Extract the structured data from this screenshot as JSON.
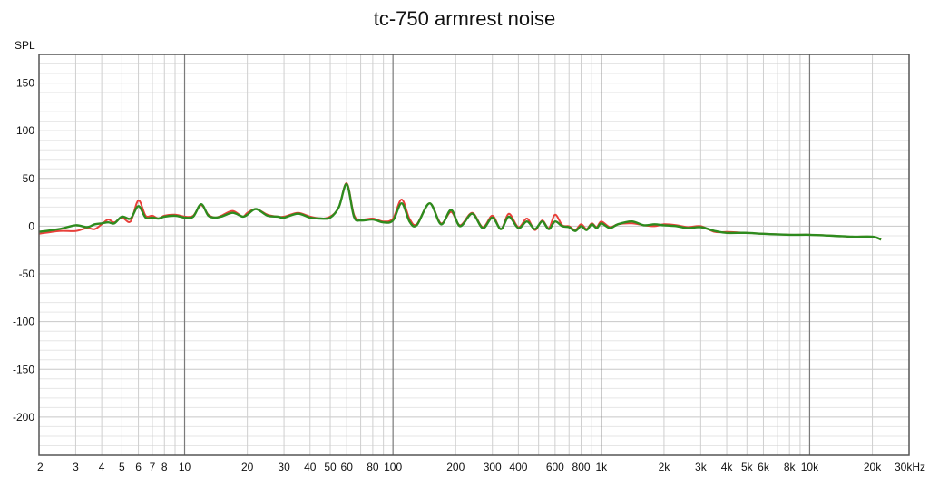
{
  "chart_data": {
    "type": "line",
    "title": "tc-750 armrest noise",
    "ylabel": "SPL",
    "xlabel": "",
    "x_scale": "log",
    "xlim": [
      2,
      30000
    ],
    "ylim": [
      -240,
      180
    ],
    "grid": true,
    "y_ticks": [
      150,
      100,
      50,
      0,
      -50,
      -100,
      -150,
      -200
    ],
    "x_ticks": [
      {
        "value": 2,
        "label": "2"
      },
      {
        "value": 3,
        "label": "3"
      },
      {
        "value": 4,
        "label": "4"
      },
      {
        "value": 5,
        "label": "5"
      },
      {
        "value": 6,
        "label": "6"
      },
      {
        "value": 7,
        "label": "7"
      },
      {
        "value": 8,
        "label": "8"
      },
      {
        "value": 10,
        "label": "10"
      },
      {
        "value": 20,
        "label": "20"
      },
      {
        "value": 30,
        "label": "30"
      },
      {
        "value": 40,
        "label": "40"
      },
      {
        "value": 50,
        "label": "50"
      },
      {
        "value": 60,
        "label": "60"
      },
      {
        "value": 80,
        "label": "80"
      },
      {
        "value": 100,
        "label": "100"
      },
      {
        "value": 200,
        "label": "200"
      },
      {
        "value": 300,
        "label": "300"
      },
      {
        "value": 400,
        "label": "400"
      },
      {
        "value": 600,
        "label": "600"
      },
      {
        "value": 800,
        "label": "800"
      },
      {
        "value": 1000,
        "label": "1k"
      },
      {
        "value": 2000,
        "label": "2k"
      },
      {
        "value": 3000,
        "label": "3k"
      },
      {
        "value": 4000,
        "label": "4k"
      },
      {
        "value": 5000,
        "label": "5k"
      },
      {
        "value": 6000,
        "label": "6k"
      },
      {
        "value": 8000,
        "label": "8k"
      },
      {
        "value": 10000,
        "label": "10k"
      },
      {
        "value": 20000,
        "label": "20k"
      },
      {
        "value": 30000,
        "label": "30kHz"
      }
    ],
    "series": [
      {
        "color": "#e8403a",
        "x": [
          2,
          2.5,
          3,
          3.4,
          3.7,
          4,
          4.3,
          4.6,
          5,
          5.5,
          6,
          6.5,
          7,
          7.5,
          8,
          9,
          10,
          11,
          12,
          13,
          14,
          15,
          17,
          19,
          20,
          22,
          25,
          28,
          30,
          35,
          40,
          45,
          50,
          55,
          60,
          65,
          70,
          80,
          90,
          100,
          110,
          120,
          130,
          150,
          170,
          190,
          210,
          240,
          270,
          300,
          330,
          360,
          400,
          440,
          480,
          520,
          560,
          600,
          650,
          700,
          750,
          800,
          850,
          900,
          950,
          1000,
          1100,
          1200,
          1400,
          1600,
          1800,
          2000,
          2300,
          2600,
          3000,
          3500,
          4000,
          5000,
          6000,
          8000,
          10000,
          13000,
          16000,
          20000,
          22000
        ],
        "y": [
          -8,
          -5,
          -5,
          -2,
          -3,
          2,
          7,
          4,
          9,
          5,
          27,
          11,
          11,
          8,
          11,
          12,
          10,
          11,
          22,
          12,
          9,
          11,
          16,
          10,
          14,
          18,
          12,
          10,
          10,
          14,
          10,
          8,
          10,
          20,
          45,
          12,
          7,
          8,
          5,
          8,
          28,
          8,
          2,
          24,
          3,
          15,
          1,
          14,
          -1,
          11,
          -3,
          13,
          -1,
          8,
          -4,
          6,
          -2,
          12,
          1,
          0,
          -4,
          2,
          -3,
          3,
          -1,
          5,
          -1,
          2,
          3,
          1,
          0,
          2,
          1,
          -1,
          0,
          -6,
          -6,
          -7,
          -8,
          -9,
          -9,
          -10,
          -11,
          -11,
          -14
        ]
      },
      {
        "color": "#2e8b1e",
        "x": [
          2,
          2.5,
          3,
          3.4,
          3.7,
          4,
          4.3,
          4.6,
          5,
          5.5,
          6,
          6.5,
          7,
          7.5,
          8,
          9,
          10,
          11,
          12,
          13,
          14,
          15,
          17,
          19,
          20,
          22,
          25,
          28,
          30,
          35,
          40,
          45,
          50,
          55,
          60,
          65,
          70,
          80,
          90,
          100,
          110,
          120,
          130,
          150,
          170,
          190,
          210,
          240,
          270,
          300,
          330,
          360,
          400,
          440,
          480,
          520,
          560,
          600,
          650,
          700,
          750,
          800,
          850,
          900,
          950,
          1000,
          1100,
          1200,
          1400,
          1600,
          1800,
          2000,
          2300,
          2600,
          3000,
          3500,
          4000,
          5000,
          6000,
          8000,
          10000,
          13000,
          16000,
          20000,
          22000
        ],
        "y": [
          -6,
          -3,
          1,
          -1,
          2,
          3,
          4,
          3,
          10,
          8,
          21,
          9,
          9,
          8,
          10,
          11,
          9,
          10,
          23,
          11,
          9,
          10,
          14,
          10,
          12,
          18,
          11,
          10,
          9,
          13,
          9,
          8,
          9,
          20,
          44,
          10,
          6,
          7,
          4,
          6,
          24,
          5,
          1,
          24,
          2,
          17,
          0,
          13,
          -2,
          9,
          -3,
          10,
          -2,
          5,
          -3,
          5,
          -3,
          5,
          0,
          -1,
          -5,
          0,
          -4,
          2,
          -2,
          3,
          -2,
          2,
          5,
          1,
          2,
          1,
          0,
          -2,
          -1,
          -5,
          -7,
          -7,
          -8,
          -9,
          -9,
          -10,
          -11,
          -11,
          -14
        ]
      }
    ]
  }
}
